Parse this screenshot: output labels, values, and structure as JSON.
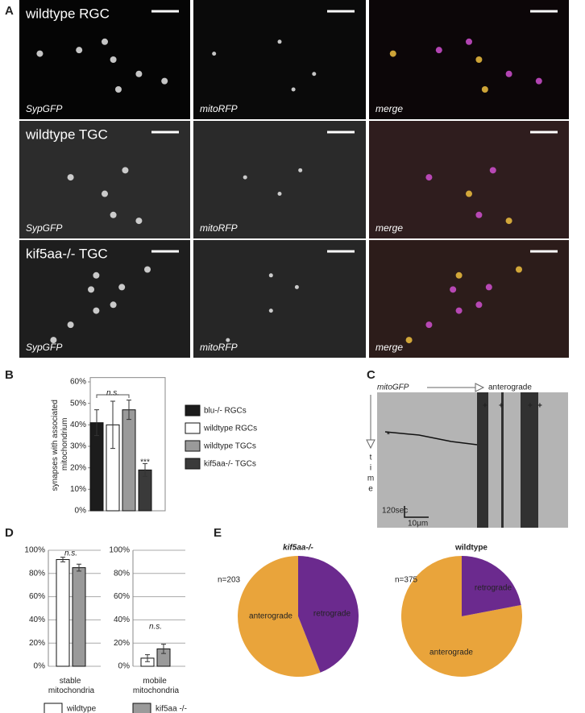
{
  "panel_labels": [
    "A",
    "B",
    "C",
    "D",
    "E"
  ],
  "panel_a": {
    "rows": [
      {
        "title": "wildtype RGC",
        "channels": [
          "SypGFP",
          "mitoRFP",
          "merge"
        ]
      },
      {
        "title": "wildtype TGC",
        "channels": [
          "SypGFP",
          "mitoRFP",
          "merge"
        ]
      },
      {
        "title": "kif5aa-/- TGC",
        "channels": [
          "SypGFP",
          "mitoRFP",
          "merge"
        ]
      }
    ]
  },
  "panel_c": {
    "channel": "mitoGFP",
    "direction": "anterograde",
    "axis": [
      "t",
      "i",
      "m",
      "e"
    ],
    "time_scale": "120sec",
    "distance_scale": "10μm",
    "markers": [
      "*",
      "+",
      "+",
      "+",
      "+"
    ]
  },
  "chart_data": [
    {
      "type": "bar",
      "ylabel": "synapses with associated mitochondrium",
      "categories": [
        null
      ],
      "series": [
        {
          "name": "blu-/- RGCs",
          "color": "#1c1c1c",
          "values": [
            41
          ],
          "errors": [
            6
          ]
        },
        {
          "name": "wildtype RGCs",
          "color": "#ffffff",
          "values": [
            40
          ],
          "errors": [
            11
          ]
        },
        {
          "name": "wildtype TGCs",
          "color": "#9a9a9a",
          "values": [
            47
          ],
          "errors": [
            4.5
          ]
        },
        {
          "name": "kif5aa-/- TGCs",
          "color": "#3a3a3a",
          "values": [
            19
          ],
          "errors": [
            3
          ]
        }
      ],
      "ylim": [
        0,
        62
      ],
      "yticks": [
        {
          "value": 0,
          "label": "0%"
        },
        {
          "value": 10,
          "label": "10%"
        },
        {
          "value": 20,
          "label": "20%"
        },
        {
          "value": 30,
          "label": "30%"
        },
        {
          "value": 40,
          "label": "40%"
        },
        {
          "value": 50,
          "label": "50%"
        },
        {
          "value": 60,
          "label": "60%"
        }
      ],
      "grid": false,
      "annotations": [
        "n.s.",
        "***"
      ],
      "legend": "right"
    },
    {
      "type": "bar",
      "categories": [
        "stable mitochondria",
        "mobile mitochondria"
      ],
      "series": [
        {
          "name": "wildtype",
          "color": "#ffffff",
          "values": [
            92,
            7
          ],
          "errors": [
            2,
            3
          ]
        },
        {
          "name": "kif5aa -/-",
          "color": "#9a9a9a",
          "values": [
            85,
            15
          ],
          "errors": [
            3,
            4
          ]
        }
      ],
      "ylim": [
        0,
        100
      ],
      "yticks": [
        {
          "value": 0,
          "label": "0%"
        },
        {
          "value": 20,
          "label": "20%"
        },
        {
          "value": 40,
          "label": "40%"
        },
        {
          "value": 60,
          "label": "60%"
        },
        {
          "value": 80,
          "label": "80%"
        },
        {
          "value": 100,
          "label": "100%"
        }
      ],
      "grid": true,
      "annotations": [
        "n.s.",
        "n.s."
      ],
      "legend": "bottom"
    },
    {
      "type": "pie",
      "title": "kif5aa-/-",
      "subtitle": "n=203",
      "categories": [
        "anterograde",
        "retrograde"
      ],
      "values": [
        56,
        44
      ],
      "colors": [
        "#e9a43b",
        "#6b2a8e"
      ]
    },
    {
      "type": "pie",
      "title": "wildtype",
      "subtitle": "n=375",
      "categories": [
        "anterograde",
        "retrograde"
      ],
      "values": [
        78,
        22
      ],
      "colors": [
        "#e9a43b",
        "#6b2a8e"
      ]
    }
  ]
}
